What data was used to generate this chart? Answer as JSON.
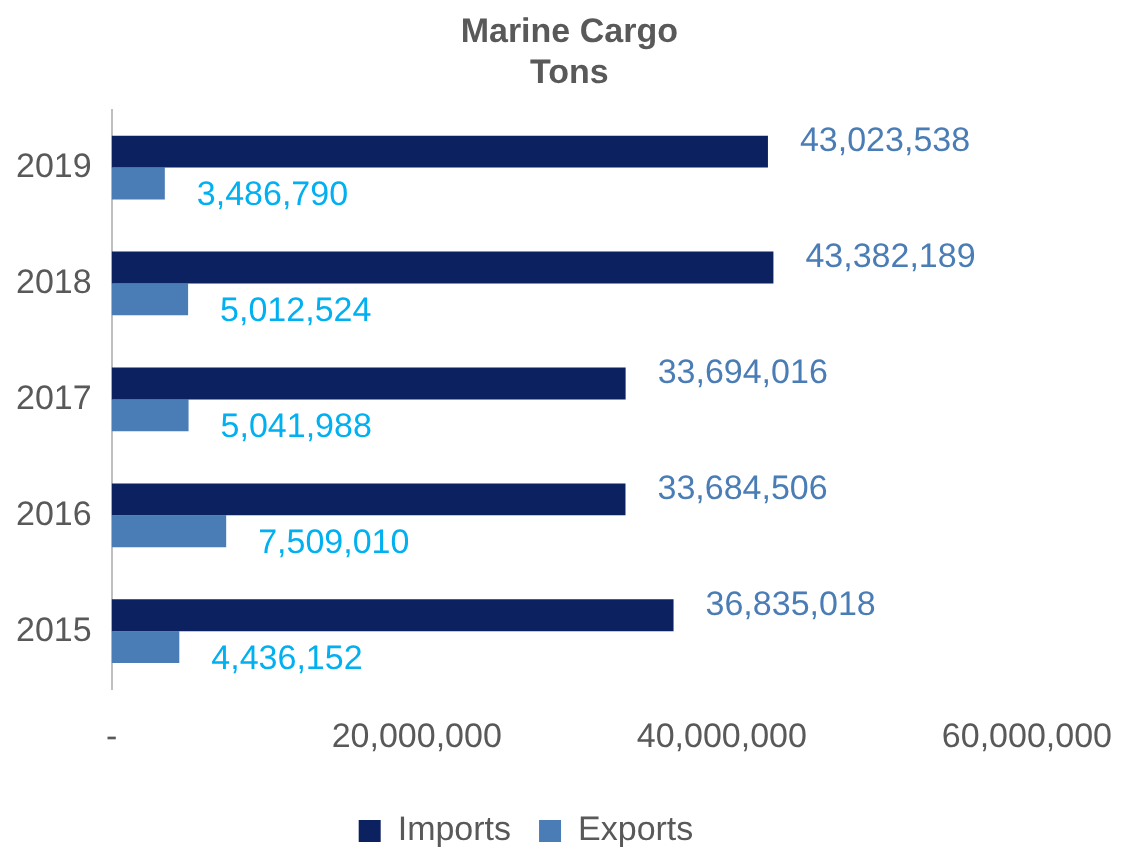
{
  "chart_data": {
    "type": "bar",
    "orientation": "horizontal",
    "title": "Marine Cargo Tons",
    "categories": [
      "2019",
      "2018",
      "2017",
      "2016",
      "2015"
    ],
    "series": [
      {
        "name": "Imports",
        "color": "#0c2160",
        "values": [
          43023538,
          43382189,
          33694016,
          33684506,
          36835018
        ],
        "value_labels": [
          "43,023,538",
          "43,382,189",
          "33,694,016",
          "33,684,506",
          "36,835,018"
        ]
      },
      {
        "name": "Exports",
        "color": "#4a7db5",
        "values": [
          3486790,
          5012524,
          5041988,
          7509010,
          4436152
        ],
        "value_labels": [
          "3,486,790",
          "5,012,524",
          "5,041,988",
          "7,509,010",
          "4,436,152"
        ]
      }
    ],
    "xlim": [
      0,
      60000000
    ],
    "xticks": [
      {
        "value": 0,
        "label": "-"
      },
      {
        "value": 20000000,
        "label": "20,000,000"
      },
      {
        "value": 40000000,
        "label": "40,000,000"
      },
      {
        "value": 60000000,
        "label": "60,000,000"
      }
    ],
    "grid": false,
    "legend": "bottom"
  }
}
